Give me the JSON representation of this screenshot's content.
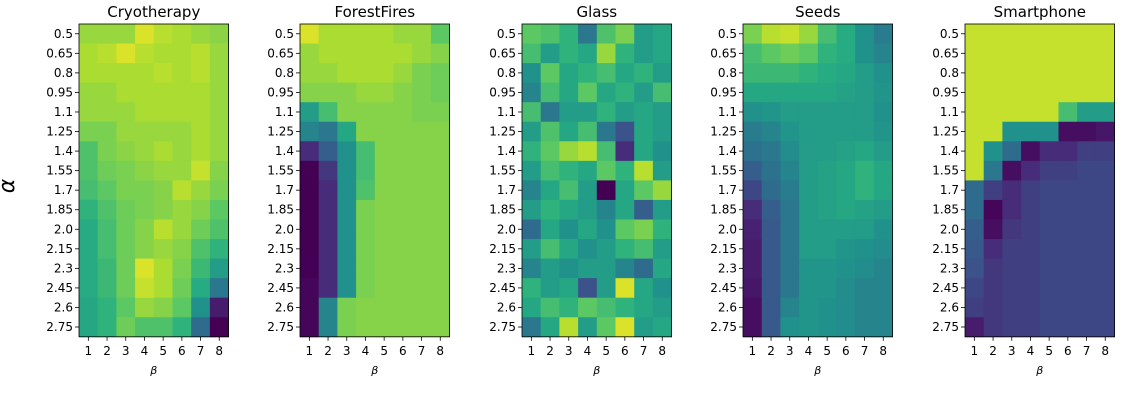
{
  "chart_data": {
    "type": "heatmap",
    "y_axis_label": "α",
    "x_axis_label": "β",
    "x_ticks": [
      "1",
      "2",
      "3",
      "4",
      "5",
      "6",
      "7",
      "8"
    ],
    "y_ticks": [
      "0.5",
      "0.65",
      "0.8",
      "0.95",
      "1.1",
      "1.25",
      "1.4",
      "1.55",
      "1.7",
      "1.85",
      "2.0",
      "2.15",
      "2.3",
      "2.45",
      "2.6",
      "2.75"
    ],
    "colormap": "viridis",
    "panels": [
      {
        "title": "Cryotherapy",
        "values": [
          [
            0.85,
            0.85,
            0.85,
            0.95,
            0.9,
            0.88,
            0.85,
            0.83
          ],
          [
            0.88,
            0.9,
            0.95,
            0.9,
            0.88,
            0.88,
            0.9,
            0.85
          ],
          [
            0.88,
            0.88,
            0.88,
            0.88,
            0.9,
            0.88,
            0.9,
            0.85
          ],
          [
            0.85,
            0.85,
            0.88,
            0.88,
            0.88,
            0.88,
            0.88,
            0.85
          ],
          [
            0.85,
            0.85,
            0.85,
            0.88,
            0.88,
            0.88,
            0.88,
            0.85
          ],
          [
            0.8,
            0.8,
            0.85,
            0.85,
            0.85,
            0.85,
            0.88,
            0.85
          ],
          [
            0.72,
            0.8,
            0.83,
            0.85,
            0.88,
            0.85,
            0.88,
            0.85
          ],
          [
            0.72,
            0.78,
            0.8,
            0.83,
            0.85,
            0.85,
            0.92,
            0.82
          ],
          [
            0.7,
            0.75,
            0.8,
            0.8,
            0.82,
            0.9,
            0.85,
            0.8
          ],
          [
            0.65,
            0.72,
            0.78,
            0.8,
            0.82,
            0.85,
            0.82,
            0.75
          ],
          [
            0.62,
            0.7,
            0.78,
            0.82,
            0.9,
            0.85,
            0.78,
            0.72
          ],
          [
            0.62,
            0.7,
            0.78,
            0.82,
            0.85,
            0.82,
            0.72,
            0.65
          ],
          [
            0.62,
            0.68,
            0.78,
            0.95,
            0.88,
            0.8,
            0.68,
            0.55
          ],
          [
            0.62,
            0.68,
            0.78,
            0.92,
            0.88,
            0.78,
            0.62,
            0.4
          ],
          [
            0.6,
            0.65,
            0.75,
            0.85,
            0.82,
            0.75,
            0.5,
            0.1
          ],
          [
            0.6,
            0.65,
            0.78,
            0.72,
            0.72,
            0.65,
            0.35,
            0.0
          ]
        ]
      },
      {
        "title": "ForestFires",
        "values": [
          [
            0.95,
            0.88,
            0.88,
            0.88,
            0.88,
            0.85,
            0.85,
            0.75
          ],
          [
            0.85,
            0.88,
            0.88,
            0.88,
            0.88,
            0.88,
            0.85,
            0.82
          ],
          [
            0.85,
            0.85,
            0.88,
            0.88,
            0.88,
            0.85,
            0.8,
            0.78
          ],
          [
            0.82,
            0.82,
            0.82,
            0.85,
            0.85,
            0.82,
            0.8,
            0.78
          ],
          [
            0.55,
            0.7,
            0.82,
            0.82,
            0.82,
            0.82,
            0.8,
            0.8
          ],
          [
            0.45,
            0.4,
            0.6,
            0.82,
            0.82,
            0.82,
            0.82,
            0.82
          ],
          [
            0.15,
            0.3,
            0.5,
            0.7,
            0.82,
            0.82,
            0.82,
            0.82
          ],
          [
            0.0,
            0.18,
            0.5,
            0.7,
            0.82,
            0.82,
            0.82,
            0.82
          ],
          [
            0.0,
            0.15,
            0.5,
            0.72,
            0.82,
            0.82,
            0.82,
            0.82
          ],
          [
            0.0,
            0.15,
            0.5,
            0.8,
            0.82,
            0.82,
            0.82,
            0.82
          ],
          [
            0.0,
            0.15,
            0.5,
            0.8,
            0.82,
            0.82,
            0.82,
            0.82
          ],
          [
            0.0,
            0.15,
            0.5,
            0.8,
            0.82,
            0.82,
            0.82,
            0.82
          ],
          [
            0.0,
            0.15,
            0.5,
            0.8,
            0.82,
            0.82,
            0.82,
            0.82
          ],
          [
            0.02,
            0.15,
            0.5,
            0.8,
            0.82,
            0.82,
            0.82,
            0.82
          ],
          [
            0.02,
            0.45,
            0.8,
            0.82,
            0.82,
            0.82,
            0.82,
            0.82
          ],
          [
            0.02,
            0.45,
            0.8,
            0.82,
            0.82,
            0.82,
            0.82,
            0.82
          ]
        ]
      },
      {
        "title": "Glass",
        "values": [
          [
            0.75,
            0.72,
            0.65,
            0.4,
            0.72,
            0.8,
            0.55,
            0.6
          ],
          [
            0.7,
            0.55,
            0.65,
            0.6,
            0.85,
            0.65,
            0.55,
            0.6
          ],
          [
            0.5,
            0.75,
            0.6,
            0.65,
            0.7,
            0.6,
            0.65,
            0.55
          ],
          [
            0.45,
            0.7,
            0.6,
            0.75,
            0.6,
            0.65,
            0.55,
            0.7
          ],
          [
            0.7,
            0.4,
            0.55,
            0.55,
            0.65,
            0.55,
            0.6,
            0.55
          ],
          [
            0.55,
            0.72,
            0.6,
            0.7,
            0.4,
            0.25,
            0.6,
            0.55
          ],
          [
            0.65,
            0.75,
            0.85,
            0.9,
            0.7,
            0.15,
            0.6,
            0.5
          ],
          [
            0.55,
            0.7,
            0.65,
            0.6,
            0.75,
            0.65,
            0.9,
            0.55
          ],
          [
            0.45,
            0.6,
            0.7,
            0.55,
            0.0,
            0.6,
            0.75,
            0.85
          ],
          [
            0.55,
            0.65,
            0.6,
            0.55,
            0.45,
            0.6,
            0.3,
            0.55
          ],
          [
            0.35,
            0.6,
            0.5,
            0.6,
            0.5,
            0.75,
            0.8,
            0.65
          ],
          [
            0.55,
            0.7,
            0.6,
            0.5,
            0.55,
            0.65,
            0.7,
            0.55
          ],
          [
            0.45,
            0.55,
            0.5,
            0.55,
            0.55,
            0.45,
            0.35,
            0.6
          ],
          [
            0.65,
            0.55,
            0.6,
            0.25,
            0.55,
            0.95,
            0.6,
            0.5
          ],
          [
            0.6,
            0.7,
            0.65,
            0.75,
            0.7,
            0.65,
            0.6,
            0.55
          ],
          [
            0.4,
            0.6,
            0.9,
            0.55,
            0.75,
            0.95,
            0.55,
            0.6
          ]
        ]
      },
      {
        "title": "Seeds",
        "values": [
          [
            0.8,
            0.9,
            0.92,
            0.85,
            0.7,
            0.62,
            0.5,
            0.42
          ],
          [
            0.7,
            0.75,
            0.78,
            0.75,
            0.65,
            0.62,
            0.5,
            0.45
          ],
          [
            0.68,
            0.68,
            0.68,
            0.65,
            0.62,
            0.6,
            0.55,
            0.5
          ],
          [
            0.6,
            0.6,
            0.6,
            0.6,
            0.6,
            0.58,
            0.55,
            0.52
          ],
          [
            0.5,
            0.52,
            0.55,
            0.55,
            0.55,
            0.55,
            0.55,
            0.5
          ],
          [
            0.42,
            0.45,
            0.52,
            0.55,
            0.55,
            0.55,
            0.55,
            0.52
          ],
          [
            0.38,
            0.4,
            0.48,
            0.55,
            0.55,
            0.58,
            0.6,
            0.55
          ],
          [
            0.3,
            0.38,
            0.45,
            0.55,
            0.58,
            0.6,
            0.65,
            0.6
          ],
          [
            0.22,
            0.35,
            0.42,
            0.55,
            0.58,
            0.6,
            0.65,
            0.6
          ],
          [
            0.15,
            0.3,
            0.4,
            0.55,
            0.58,
            0.6,
            0.58,
            0.55
          ],
          [
            0.12,
            0.28,
            0.4,
            0.55,
            0.55,
            0.55,
            0.55,
            0.5
          ],
          [
            0.1,
            0.28,
            0.4,
            0.55,
            0.55,
            0.52,
            0.5,
            0.48
          ],
          [
            0.1,
            0.28,
            0.4,
            0.52,
            0.52,
            0.5,
            0.48,
            0.45
          ],
          [
            0.08,
            0.28,
            0.4,
            0.52,
            0.52,
            0.48,
            0.45,
            0.45
          ],
          [
            0.05,
            0.28,
            0.45,
            0.52,
            0.5,
            0.48,
            0.45,
            0.45
          ],
          [
            0.05,
            0.28,
            0.5,
            0.52,
            0.5,
            0.48,
            0.45,
            0.45
          ]
        ]
      },
      {
        "title": "Smartphone",
        "values": [
          [
            0.92,
            0.92,
            0.92,
            0.92,
            0.92,
            0.92,
            0.92,
            0.92
          ],
          [
            0.92,
            0.92,
            0.92,
            0.92,
            0.92,
            0.92,
            0.92,
            0.92
          ],
          [
            0.92,
            0.92,
            0.92,
            0.92,
            0.92,
            0.92,
            0.92,
            0.92
          ],
          [
            0.92,
            0.92,
            0.92,
            0.92,
            0.92,
            0.92,
            0.92,
            0.92
          ],
          [
            0.92,
            0.92,
            0.92,
            0.92,
            0.92,
            0.7,
            0.55,
            0.55
          ],
          [
            0.92,
            0.92,
            0.5,
            0.5,
            0.5,
            0.05,
            0.05,
            0.08
          ],
          [
            0.92,
            0.5,
            0.35,
            0.05,
            0.15,
            0.15,
            0.2,
            0.2
          ],
          [
            0.92,
            0.4,
            0.05,
            0.15,
            0.2,
            0.2,
            0.22,
            0.22
          ],
          [
            0.35,
            0.2,
            0.15,
            0.2,
            0.22,
            0.22,
            0.22,
            0.22
          ],
          [
            0.35,
            0.02,
            0.15,
            0.2,
            0.22,
            0.22,
            0.22,
            0.22
          ],
          [
            0.3,
            0.05,
            0.18,
            0.2,
            0.22,
            0.22,
            0.22,
            0.22
          ],
          [
            0.28,
            0.15,
            0.2,
            0.2,
            0.22,
            0.22,
            0.22,
            0.22
          ],
          [
            0.25,
            0.18,
            0.2,
            0.2,
            0.22,
            0.22,
            0.22,
            0.22
          ],
          [
            0.22,
            0.18,
            0.2,
            0.2,
            0.22,
            0.22,
            0.22,
            0.22
          ],
          [
            0.2,
            0.18,
            0.2,
            0.2,
            0.22,
            0.22,
            0.22,
            0.22
          ],
          [
            0.1,
            0.18,
            0.2,
            0.2,
            0.22,
            0.22,
            0.22,
            0.22
          ]
        ]
      }
    ]
  }
}
